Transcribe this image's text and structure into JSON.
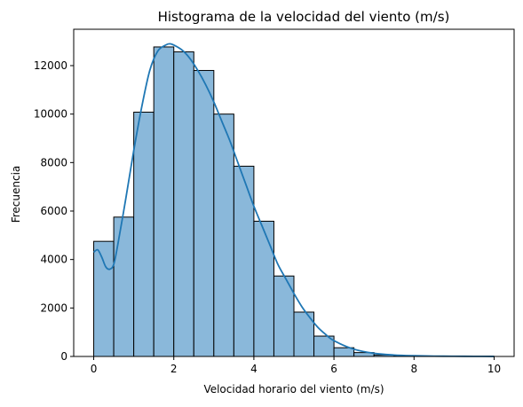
{
  "chart_data": {
    "type": "bar",
    "title": "Histograma de la velocidad del viento (m/s)",
    "xlabel": "Velocidad horario del viento (m/s)",
    "ylabel": "Frecuencia",
    "xlim": [
      -0.5,
      10.5
    ],
    "ylim": [
      0,
      13500
    ],
    "x_ticks": [
      0,
      2,
      4,
      6,
      8,
      10
    ],
    "y_ticks": [
      0,
      2000,
      4000,
      6000,
      8000,
      10000,
      12000
    ],
    "bin_edges": [
      0,
      0.5,
      1,
      1.5,
      2,
      2.5,
      3,
      3.5,
      4,
      4.5,
      5,
      5.5,
      6,
      6.5,
      7,
      7.5,
      8,
      8.5,
      9,
      9.5,
      10
    ],
    "values": [
      4750,
      5750,
      10080,
      12770,
      12570,
      11800,
      10000,
      7850,
      5580,
      3320,
      1830,
      840,
      360,
      160,
      60,
      30,
      15,
      10,
      5,
      5
    ],
    "kde": {
      "x": [
        0,
        0.1,
        0.2,
        0.3,
        0.4,
        0.5,
        0.6,
        0.8,
        1.0,
        1.2,
        1.4,
        1.6,
        1.8,
        1.9,
        2.0,
        2.2,
        2.4,
        2.6,
        2.8,
        3.0,
        3.2,
        3.4,
        3.6,
        3.8,
        4.0,
        4.2,
        4.4,
        4.6,
        4.8,
        5.0,
        5.2,
        5.4,
        5.6,
        5.8,
        6.0,
        6.5,
        7.0,
        7.5,
        8.0,
        8.5,
        9.0,
        9.5,
        10.0
      ],
      "y": [
        4300,
        4400,
        4100,
        3700,
        3600,
        3800,
        4600,
        6500,
        8500,
        10300,
        11800,
        12600,
        12850,
        12900,
        12850,
        12650,
        12300,
        11800,
        11200,
        10500,
        9700,
        8900,
        8000,
        7100,
        6200,
        5400,
        4600,
        3800,
        3200,
        2600,
        2050,
        1600,
        1200,
        900,
        650,
        300,
        130,
        60,
        30,
        15,
        8,
        5,
        3
      ]
    },
    "grid": false,
    "legend": "none",
    "bar_color": "#8ab8da",
    "bar_edge_color": "#000000",
    "line_color": "#1f77b4"
  }
}
